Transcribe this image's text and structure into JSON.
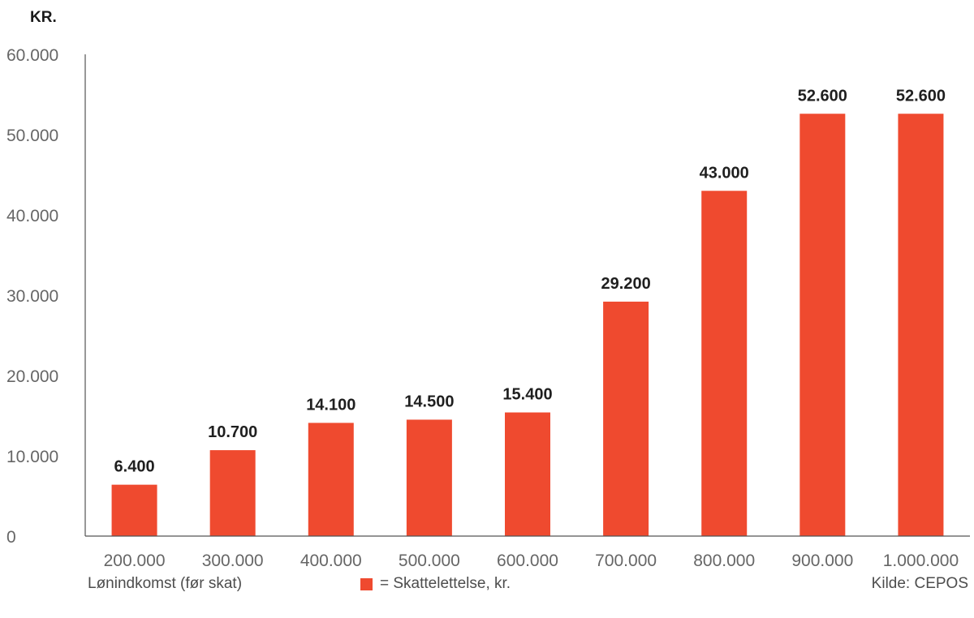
{
  "chart_data": {
    "type": "bar",
    "ylabel": "KR.",
    "xlabel": "Lønindkomst (før skat)",
    "categories": [
      "200.000",
      "300.000",
      "400.000",
      "500.000",
      "600.000",
      "700.000",
      "800.000",
      "900.000",
      "1.000.000"
    ],
    "series": [
      {
        "name": "= Skattelettelse, kr.",
        "values": [
          6400,
          10700,
          14100,
          14500,
          15400,
          29200,
          43000,
          52600,
          52600
        ],
        "labels": [
          "6.400",
          "10.700",
          "14.100",
          "14.500",
          "15.400",
          "29.200",
          "43.000",
          "52.600",
          "52.600"
        ],
        "color": "#ef4a2f"
      }
    ],
    "yticks": [
      0,
      10000,
      20000,
      30000,
      40000,
      50000,
      60000
    ],
    "ytick_labels": [
      "0",
      "10.000",
      "20.000",
      "30.000",
      "40.000",
      "50.000",
      "60.000"
    ],
    "ylim": [
      0,
      60000
    ],
    "grid": false,
    "legend_position": "bottom"
  },
  "footer": {
    "x_axis_title": "Lønindkomst (før skat)",
    "legend_label": "= Skattelettelse, kr.",
    "source": "Kilde: CEPOS"
  }
}
